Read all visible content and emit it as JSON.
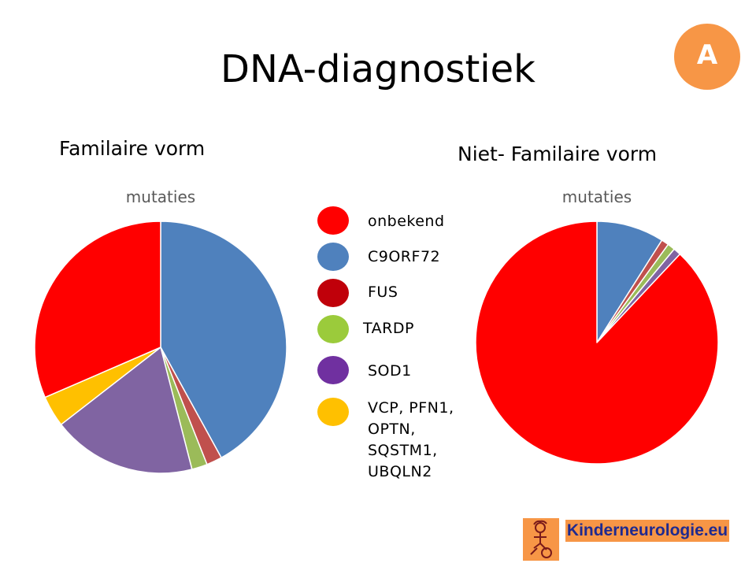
{
  "slide": {
    "title": "DNA-diagnostiek",
    "badge": "A"
  },
  "legend": [
    {
      "label": "onbekend",
      "color": "#ff0000"
    },
    {
      "label": "C9ORF72",
      "color": "#4f81bd"
    },
    {
      "label": "FUS",
      "color": "#c0000a"
    },
    {
      "label": "TARDP",
      "color": "#9bcb3b"
    },
    {
      "label": "SOD1",
      "color": "#7030a0"
    },
    {
      "label": "VCP, PFN1,\nOPTN,\nSQSTM1,\nUBQLN2",
      "color": "#ffc000"
    }
  ],
  "chart_data": [
    {
      "type": "pie",
      "section_title": "Familaire vorm",
      "title": "mutaties",
      "categories": [
        "C9ORF72",
        "FUS",
        "TARDP",
        "SOD1",
        "VCP, PFN1, OPTN, SQSTM1, UBQLN2",
        "onbekend"
      ],
      "values": [
        42,
        2,
        2,
        18.5,
        4,
        31.5
      ],
      "colors": [
        "#4f81bd",
        "#c0504d",
        "#9bbb59",
        "#8064a2",
        "#ffc000",
        "#ff0000"
      ]
    },
    {
      "type": "pie",
      "section_title": "Niet- Familaire vorm",
      "title": "mutaties",
      "categories": [
        "C9ORF72",
        "FUS",
        "TARDP",
        "SOD1",
        "onbekend"
      ],
      "values": [
        9,
        1,
        1,
        1,
        88
      ],
      "colors": [
        "#4f81bd",
        "#c0504d",
        "#9bbb59",
        "#8064a2",
        "#ff0000"
      ]
    }
  ],
  "logo": {
    "text": "Kinderneurologie.eu"
  }
}
